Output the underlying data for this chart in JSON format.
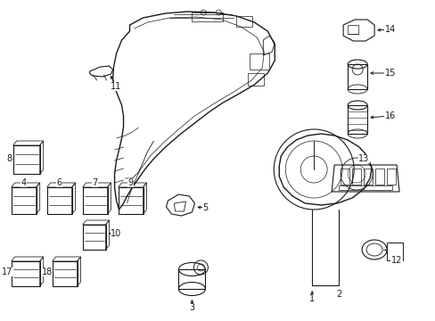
{
  "background_color": "#ffffff",
  "line_color": "#1a1a1a",
  "figure_width": 4.89,
  "figure_height": 3.6,
  "dpi": 100,
  "label_fontsize": 7.0
}
